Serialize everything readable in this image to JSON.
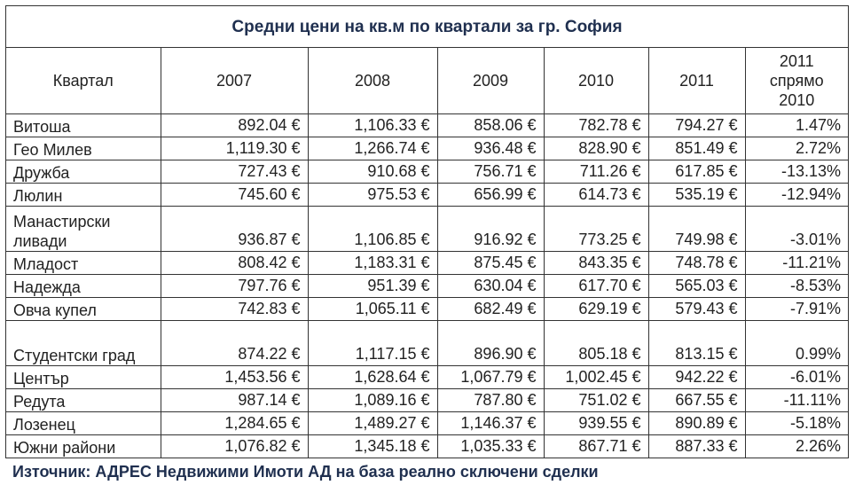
{
  "title": "Средни цени на кв.м по квартали за гр. София",
  "headers": {
    "district": "Квартал",
    "y2007": "2007",
    "y2008": "2008",
    "y2009": "2009",
    "y2010": "2010",
    "y2011": "2011",
    "change": "2011 спрямо 2010"
  },
  "rows": [
    {
      "name": "Витоша",
      "v2007": "892.04 €",
      "v2008": "1,106.33 €",
      "v2009": "858.06 €",
      "v2010": "782.78 €",
      "v2011": "794.27 €",
      "change": "1.47%"
    },
    {
      "name": "Гео Милев",
      "v2007": "1,119.30 €",
      "v2008": "1,266.74 €",
      "v2009": "936.48 €",
      "v2010": "828.90 €",
      "v2011": "851.49 €",
      "change": "2.72%"
    },
    {
      "name": "Дружба",
      "v2007": "727.43 €",
      "v2008": "910.68 €",
      "v2009": "756.71 €",
      "v2010": "711.26 €",
      "v2011": "617.85 €",
      "change": "-13.13%"
    },
    {
      "name": "Люлин",
      "v2007": "745.60 €",
      "v2008": "975.53 €",
      "v2009": "656.99 €",
      "v2010": "614.73 €",
      "v2011": "535.19 €",
      "change": "-12.94%"
    },
    {
      "name": "Манастирски ливади",
      "v2007": "936.87 €",
      "v2008": "1,106.85 €",
      "v2009": "916.92 €",
      "v2010": "773.25 €",
      "v2011": "749.98 €",
      "change": "-3.01%"
    },
    {
      "name": "Младост",
      "v2007": "808.42 €",
      "v2008": "1,183.31 €",
      "v2009": "875.45 €",
      "v2010": "843.35 €",
      "v2011": "748.78 €",
      "change": "-11.21%"
    },
    {
      "name": "Надежда",
      "v2007": "797.76 €",
      "v2008": "951.39 €",
      "v2009": "630.04 €",
      "v2010": "617.70 €",
      "v2011": "565.03 €",
      "change": "-8.53%"
    },
    {
      "name": "Овча купел",
      "v2007": "742.83 €",
      "v2008": "1,065.11 €",
      "v2009": "682.49 €",
      "v2010": "629.19 €",
      "v2011": "579.43 €",
      "change": "-7.91%"
    },
    {
      "name": "Студентски град",
      "v2007": "874.22 €",
      "v2008": "1,117.15 €",
      "v2009": "896.90 €",
      "v2010": "805.18 €",
      "v2011": "813.15 €",
      "change": "0.99%"
    },
    {
      "name": "Център",
      "v2007": "1,453.56 €",
      "v2008": "1,628.64 €",
      "v2009": "1,067.79 €",
      "v2010": "1,002.45 €",
      "v2011": "942.22 €",
      "change": "-6.01%"
    },
    {
      "name": "Редута",
      "v2007": "987.14 €",
      "v2008": "1,089.16 €",
      "v2009": "787.80 €",
      "v2010": "751.02 €",
      "v2011": "667.55 €",
      "change": "-11.11%"
    },
    {
      "name": "Лозенец",
      "v2007": "1,284.65 €",
      "v2008": "1,489.27 €",
      "v2009": "1,146.37 €",
      "v2010": "939.55 €",
      "v2011": "890.89 €",
      "change": "-5.18%"
    },
    {
      "name": "Южни райони",
      "v2007": "1,076.82 €",
      "v2008": "1,345.18 €",
      "v2009": "1,035.33 €",
      "v2010": "867.71 €",
      "v2011": "887.33 €",
      "change": "2.26%"
    }
  ],
  "footer": "Източник: АДРЕС Недвижими Имоти АД на база реално сключени сделки"
}
